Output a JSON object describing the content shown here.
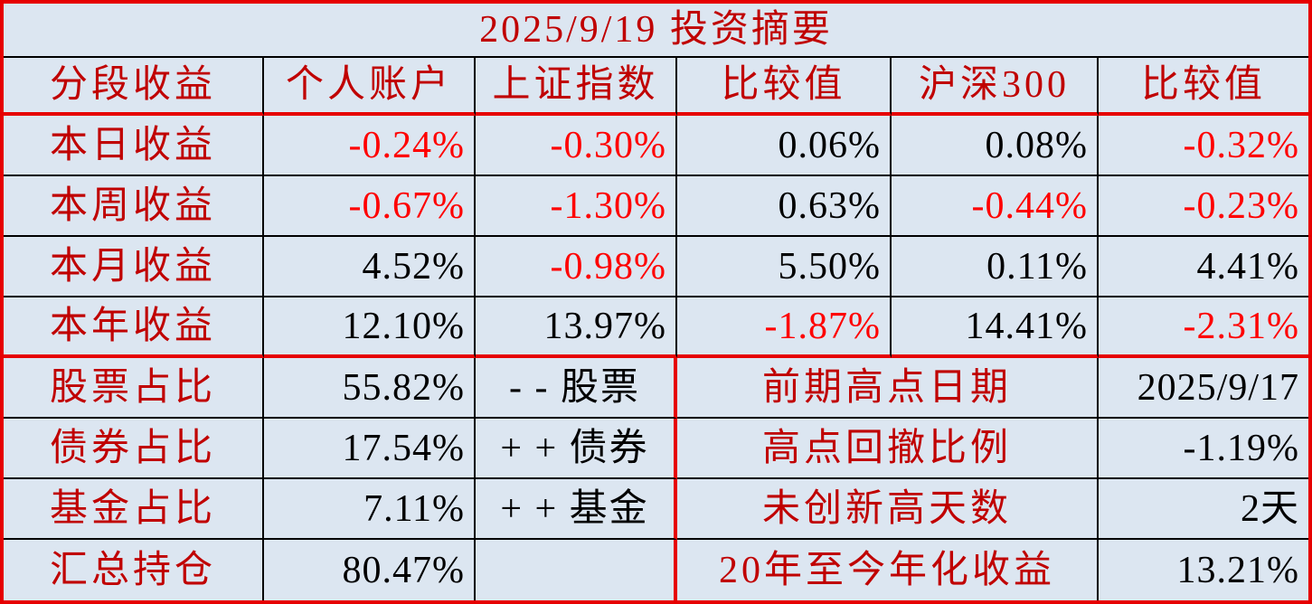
{
  "colors": {
    "background": "#dce6f1",
    "label_dark_red": "#c00000",
    "negative_red": "#ff0000",
    "border_red": "#e60000",
    "grid_line_black": "#000000",
    "value_black": "#000000"
  },
  "title": "2025/9/19 投资摘要",
  "table": {
    "headers": {
      "segment": "分段收益",
      "personal": "个人账户",
      "sse": "上证指数",
      "compare1": "比较值",
      "csi300": "沪深300",
      "compare2": "比较值"
    },
    "performance_rows": [
      {
        "label": "本日收益",
        "personal": "-0.24%",
        "sse": "-0.30%",
        "compare1": "0.06%",
        "csi300": "0.08%",
        "compare2": "-0.32%"
      },
      {
        "label": "本周收益",
        "personal": "-0.67%",
        "sse": "-1.30%",
        "compare1": "0.63%",
        "csi300": "-0.44%",
        "compare2": "-0.23%"
      },
      {
        "label": "本月收益",
        "personal": "4.52%",
        "sse": "-0.98%",
        "compare1": "5.50%",
        "csi300": "0.11%",
        "compare2": "4.41%"
      },
      {
        "label": "本年收益",
        "personal": "12.10%",
        "sse": "13.97%",
        "compare1": "-1.87%",
        "csi300": "14.41%",
        "compare2": "-2.31%"
      }
    ],
    "allocation_rows": [
      {
        "label": "股票占比",
        "value": "55.82%",
        "note": "- - 股票"
      },
      {
        "label": "债券占比",
        "value": "17.54%",
        "note": "+ + 债券"
      },
      {
        "label": "基金占比",
        "value": "7.11%",
        "note": "+ + 基金"
      },
      {
        "label": "汇总持仓",
        "value": "80.47%",
        "note": ""
      }
    ],
    "summary_rows": [
      {
        "label": "前期高点日期",
        "value": "2025/9/17"
      },
      {
        "label": "高点回撤比例",
        "value": "-1.19%"
      },
      {
        "label": "未创新高天数",
        "value": "2天"
      },
      {
        "label": "20年至今年化收益",
        "value": "13.21%"
      }
    ]
  }
}
